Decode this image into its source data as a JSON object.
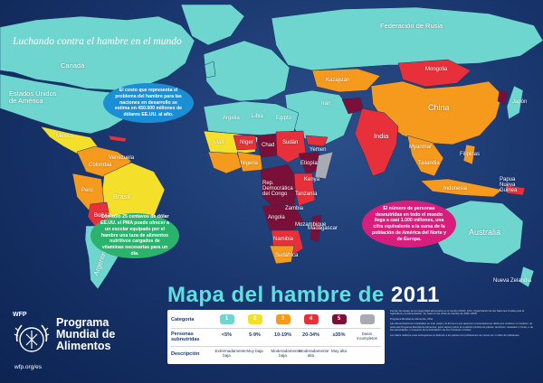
{
  "tagline": "Luchando contra el hambre en el mundo",
  "countries": {
    "russia": "Federación de Rusia",
    "canada": "Canadá",
    "usa": "Estados Unidos de América",
    "mongolia": "Mongolia",
    "china": "China",
    "india": "India",
    "japan": "Japón",
    "australia": "Australia",
    "nz": "Nueva Zelandia",
    "brasil": "Brasil",
    "bolivia": "Bolivia",
    "peru": "Perú",
    "argentina": "Argentina",
    "mexico": "México",
    "niger": "Níger",
    "chad": "Chad",
    "sudan": "Sudán",
    "mali": "Malí",
    "nigeria": "Nigeria",
    "drc": "Rep. Democrática del Congo",
    "ethiopia": "Etiopía",
    "angola": "Angola",
    "namibia": "Namibia",
    "sudafrica": "Sudáfrica",
    "madagascar": "Madagascar",
    "indonesia": "Indonesia",
    "kazakhstan": "Kazajstán",
    "iran": "Irán",
    "egypt": "Egipto",
    "libya": "Libia",
    "algeria": "Argelia",
    "yemen": "Yemen",
    "tanzania": "Tanzanía",
    "zambia": "Zambia",
    "kenya": "Kenya",
    "mozambique": "Mozambique",
    "myanmar": "Myanmar",
    "thailand": "Tailandia",
    "philippines": "Filipinas",
    "png": "Papua Nueva Guinea",
    "colombia": "Colombia",
    "venezuela": "Venezuela"
  },
  "bubbles": {
    "blue": "El costo que representa el problema del hambre para las naciones en desarrollo se estima en 450.000 millones de dólares EE.UU. al año.",
    "green": "Con sólo 25 centavos de dólar EE.UU. el PMA puede ofrecer a un escolar equipado por el hambre una taza de alimentos nutritivos cargados de vitaminas necesarias para un día.",
    "pink": "El número de personas desnutridas en todo el mundo llega a casi 1.000 millones, una cifra equivalente a la suma de la población de América del Norte y de Europa."
  },
  "title": {
    "main": "Mapa del hambre de",
    "year": "2011"
  },
  "wfp": {
    "abbr": "WFP",
    "name_line1": "Programa",
    "name_line2": "Mundial de",
    "name_line3": "Alimentos",
    "url": "wfp.org/es"
  },
  "legend": {
    "row1_head": "Categoría",
    "row2_head": "Personas subnutridas",
    "row3_head": "Descripción",
    "categories": [
      {
        "num": "1",
        "color": "#6fd6cf",
        "pct": "<5%",
        "desc": "Extremadamente baja"
      },
      {
        "num": "2",
        "color": "#f4e02a",
        "pct": "5-9%",
        "desc": "Muy baja"
      },
      {
        "num": "3",
        "color": "#f59a1c",
        "pct": "10-19%",
        "desc": "Moderadamente baja"
      },
      {
        "num": "4",
        "color": "#e8303a",
        "pct": "20-34%",
        "desc": "Moderadamente alta"
      },
      {
        "num": "5",
        "color": "#7a1038",
        "pct": "≥35%",
        "desc": "Muy alta"
      },
      {
        "num": "",
        "color": "#a8abb4",
        "pct": "Datos incompletos",
        "desc": ""
      }
    ]
  },
  "notes": [
    "Fuente: El estado de la inseguridad alimentaria en el mundo (2010). FAO, Organización de las Naciones Unidas para la Agricultura y la Alimentación. Se basa en las cifras de hambre de 2006–2008.",
    "Programa Mundial de Alimentos, 2011",
    "Las denominaciones empleadas en este mapa y la forma en que aparecen presentados los datos que contiene no implican, de parte del Programa Mundial de Alimentos, juicio alguno sobre la condición jurídica de países, territorios, ciudades o zonas, o de sus autoridades, ni respecto de la delimitación de sus fronteras o límites.",
    "Los datos relativos a las subregiones no abarcan a los países con poblaciones de menos de 1 millón de habitantes."
  ],
  "map_colors": {
    "ocean": "#17336a",
    "cat1": "#6fd6cf",
    "cat2": "#f4e02a",
    "cat3": "#f59a1c",
    "cat4": "#e8303a",
    "cat5": "#7a1038",
    "nodata": "#a8abb4",
    "highlight_blue": "#1a8fd6",
    "highlight_green": "#2bb36e",
    "highlight_pink": "#d91d7d",
    "title_cyan": "#5ee0e0"
  }
}
